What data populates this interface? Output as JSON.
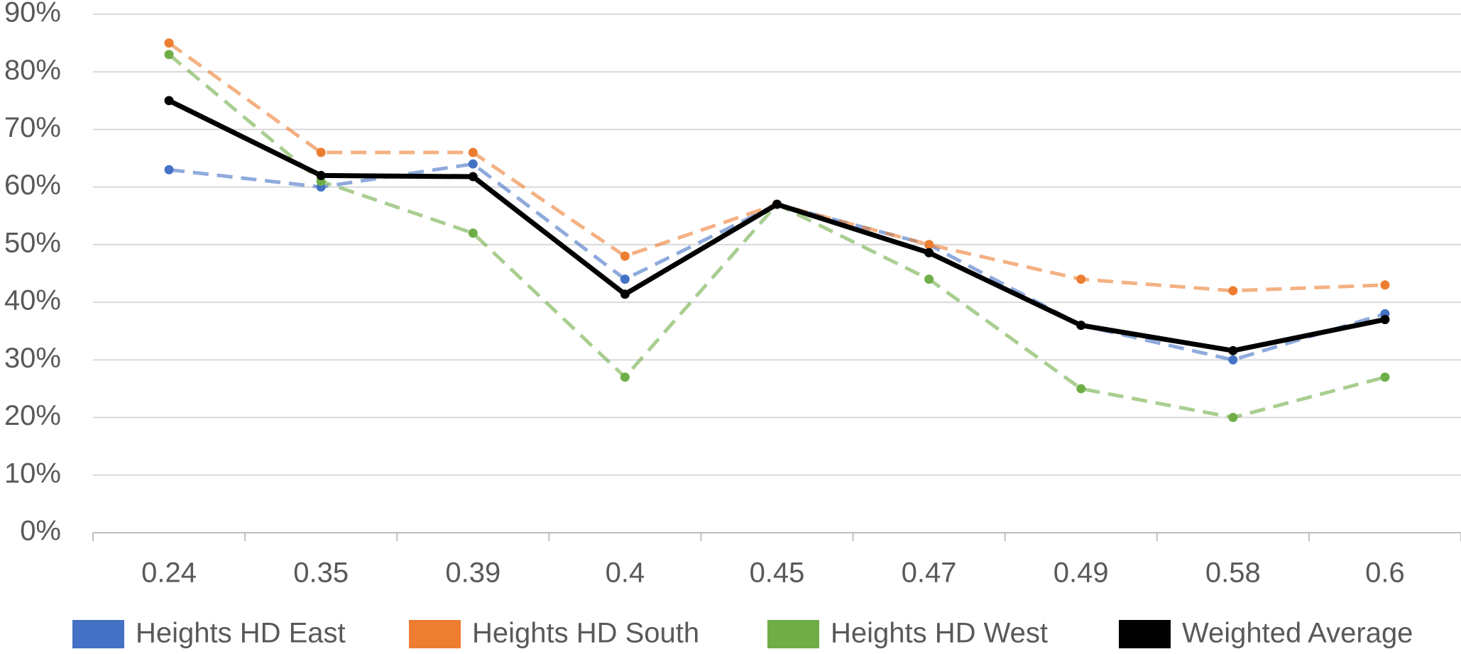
{
  "chart_data": {
    "type": "line",
    "categories": [
      "0.24",
      "0.35",
      "0.39",
      "0.4",
      "0.45",
      "0.47",
      "0.49",
      "0.58",
      "0.6"
    ],
    "series": [
      {
        "name": "Heights HD East",
        "color": "#4472c4",
        "dashed": true,
        "values": [
          63,
          60,
          64,
          44,
          57,
          50,
          36,
          30,
          38
        ]
      },
      {
        "name": "Heights HD South",
        "color": "#ed7d31",
        "dashed": true,
        "values": [
          85,
          66,
          66,
          48,
          57,
          50,
          44,
          42,
          43
        ]
      },
      {
        "name": "Heights HD West",
        "color": "#70ad47",
        "dashed": true,
        "values": [
          83,
          61,
          52,
          27,
          57,
          44,
          25,
          20,
          27
        ]
      },
      {
        "name": "Weighted Average",
        "color": "#000000",
        "dashed": false,
        "values": [
          75,
          62,
          61.8,
          41.4,
          57,
          48.6,
          36,
          31.6,
          37
        ]
      }
    ],
    "ylim": [
      0,
      90
    ],
    "yticks": [
      {
        "value": 0,
        "label": "0%"
      },
      {
        "value": 10,
        "label": "10%"
      },
      {
        "value": 20,
        "label": "20%"
      },
      {
        "value": 30,
        "label": "30%"
      },
      {
        "value": 40,
        "label": "40%"
      },
      {
        "value": 50,
        "label": "50%"
      },
      {
        "value": 60,
        "label": "60%"
      },
      {
        "value": 70,
        "label": "70%"
      },
      {
        "value": 80,
        "label": "80%"
      },
      {
        "value": 90,
        "label": "90%"
      }
    ],
    "grid": true,
    "legend": "bottom"
  }
}
